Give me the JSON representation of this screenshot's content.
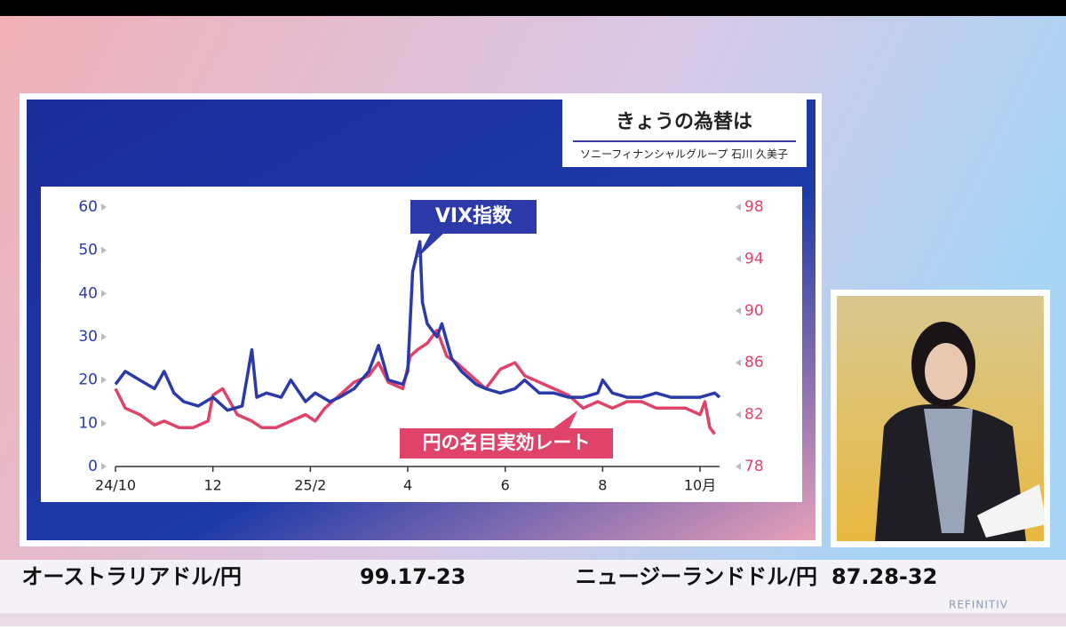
{
  "header": {
    "title": "きょうの為替は",
    "subtitle": "ソニーフィナンシャルグループ 石川 久美子"
  },
  "ticker": [
    {
      "pair": "オーストラリアドル/円",
      "rate": "99.17-23"
    },
    {
      "pair": "ニュージーランドドル/円",
      "rate": "87.28-32"
    }
  ],
  "logo": "REFINITIV",
  "chart_data": {
    "type": "line",
    "xlim": [
      0,
      12.4
    ],
    "xticks": [
      {
        "value": 0,
        "label": "24/10"
      },
      {
        "value": 2,
        "label": "12"
      },
      {
        "value": 4,
        "label": "25/2"
      },
      {
        "value": 6,
        "label": "4"
      },
      {
        "value": 8,
        "label": "6"
      },
      {
        "value": 10,
        "label": "8"
      },
      {
        "value": 12,
        "label": "10月"
      }
    ],
    "ylim": [
      0,
      60
    ],
    "yticks": [
      0,
      10,
      20,
      30,
      40,
      50,
      60
    ],
    "y2lim": [
      78,
      98
    ],
    "y2ticks": [
      78,
      82,
      86,
      90,
      94,
      98
    ],
    "series": [
      {
        "name": "VIX指数",
        "color": "#2b3aa8",
        "x": [
          0,
          0.2,
          0.5,
          0.8,
          1.0,
          1.2,
          1.4,
          1.7,
          2.0,
          2.3,
          2.6,
          2.8,
          2.9,
          3.1,
          3.4,
          3.6,
          3.9,
          4.1,
          4.4,
          4.6,
          4.9,
          5.2,
          5.4,
          5.6,
          5.9,
          6.0,
          6.1,
          6.25,
          6.3,
          6.4,
          6.6,
          6.7,
          6.9,
          7.1,
          7.4,
          7.6,
          7.9,
          8.2,
          8.4,
          8.7,
          9.0,
          9.3,
          9.6,
          9.9,
          10.0,
          10.2,
          10.5,
          10.8,
          11.1,
          11.4,
          11.7,
          12.0,
          12.3,
          12.4
        ],
        "values": [
          19,
          22,
          20,
          18,
          22,
          17,
          15,
          14,
          16,
          13,
          14,
          27,
          16,
          17,
          16,
          20,
          15,
          17,
          15,
          16,
          18,
          22,
          28,
          20,
          19,
          22,
          45,
          52,
          38,
          33,
          30,
          33,
          25,
          22,
          19,
          18,
          17,
          18,
          20,
          17,
          17,
          16,
          16,
          17,
          20,
          17,
          16,
          16,
          17,
          16,
          16,
          16,
          17,
          16
        ]
      },
      {
        "name": "円の名目実効レート",
        "color": "#e0436a",
        "axis": "y2",
        "x": [
          0,
          0.2,
          0.5,
          0.8,
          1.0,
          1.3,
          1.6,
          1.9,
          2.0,
          2.2,
          2.5,
          2.8,
          3.0,
          3.3,
          3.6,
          3.9,
          4.1,
          4.3,
          4.6,
          4.9,
          5.2,
          5.4,
          5.6,
          5.9,
          6.05,
          6.2,
          6.4,
          6.6,
          6.8,
          7.0,
          7.3,
          7.6,
          7.9,
          8.2,
          8.4,
          8.7,
          9.0,
          9.3,
          9.6,
          9.9,
          10.2,
          10.5,
          10.8,
          11.1,
          11.4,
          11.7,
          12.0,
          12.1,
          12.2,
          12.3
        ],
        "values": [
          84,
          82.5,
          82,
          81.2,
          81.5,
          81,
          81,
          81.5,
          83.5,
          84,
          82,
          81.5,
          81,
          81,
          81.5,
          82,
          81.5,
          82.5,
          83.5,
          84.5,
          85,
          86,
          84.5,
          84,
          86.5,
          87,
          87.5,
          88.5,
          86.5,
          86,
          85,
          84,
          85.5,
          86,
          85,
          84.5,
          84,
          83.5,
          82.5,
          83,
          82.5,
          83,
          83,
          82.5,
          82.5,
          82.5,
          82,
          83,
          81,
          80.5
        ]
      }
    ]
  }
}
